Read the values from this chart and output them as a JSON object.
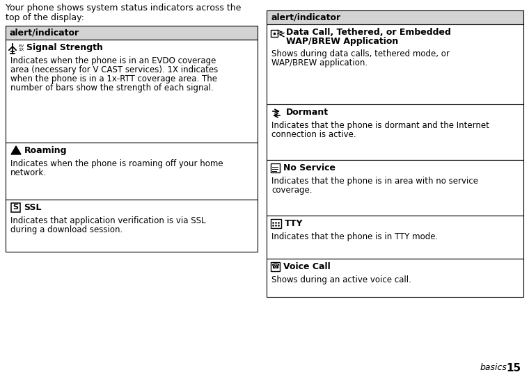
{
  "bg_color": "#ffffff",
  "page_number": "15",
  "page_label": "basics",
  "intro_line1": "Your phone shows system status indicators across the",
  "intro_line2": "top of the display:",
  "left_table": {
    "header": "alert/indicator",
    "rows": [
      {
        "icon": "signal",
        "title": "Signal Strength",
        "title_line1": "Signal Strength",
        "body_line1": "Indicates when the phone is in an EVDO coverage",
        "body_line2": "area (necessary for V CAST services). 1X indicates",
        "body_line3": "when the phone is in a 1x-RTT coverage area. The",
        "body_line4": "number of bars show the strength of each signal."
      },
      {
        "icon": "roaming",
        "title": "Roaming",
        "body_line1": "Indicates when the phone is roaming off your home",
        "body_line2": "network."
      },
      {
        "icon": "ssl",
        "title": "SSL",
        "body_line1": "Indicates that application verification is via SSL",
        "body_line2": "during a download session."
      }
    ]
  },
  "right_table": {
    "header": "alert/indicator",
    "rows": [
      {
        "icon": "data",
        "title_line1": "Data Call, Tethered, or Embedded",
        "title_line2": "WAP/BREW Application",
        "body_line1": "Shows during data calls, tethered mode, or",
        "body_line2": "WAP/BREW application."
      },
      {
        "icon": "dormant",
        "title": "Dormant",
        "body_line1": "Indicates that the phone is dormant and the Internet",
        "body_line2": "connection is active."
      },
      {
        "icon": "noservice",
        "title": "No Service",
        "body_line1": "Indicates that the phone is in area with no service",
        "body_line2": "coverage."
      },
      {
        "icon": "tty",
        "title": "TTY",
        "body_line1": "Indicates that the phone is in TTY mode."
      },
      {
        "icon": "voice",
        "title": "Voice Call",
        "body_line1": "Shows during an active voice call."
      }
    ]
  },
  "header_bg": "#d3d3d3",
  "fonts": {
    "intro_size": 9.0,
    "header_size": 9.0,
    "title_size": 9.0,
    "body_size": 8.5
  }
}
